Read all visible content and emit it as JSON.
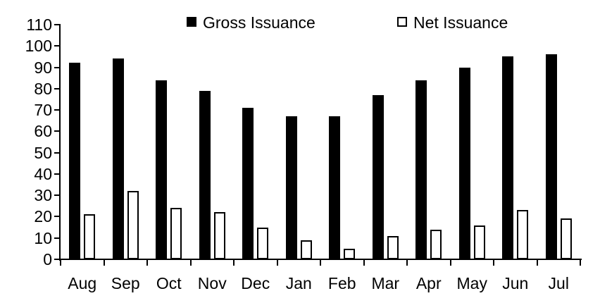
{
  "chart_data": {
    "type": "bar",
    "categories": [
      "Aug",
      "Sep",
      "Oct",
      "Nov",
      "Dec",
      "Jan",
      "Feb",
      "Mar",
      "Apr",
      "May",
      "Jun",
      "Jul"
    ],
    "series": [
      {
        "name": "Gross Issuance",
        "values": [
          92,
          94,
          84,
          79,
          71,
          67,
          67,
          77,
          84,
          90,
          95,
          96
        ],
        "fill": "#000000",
        "border": "#000000"
      },
      {
        "name": "Net Issuance",
        "values": [
          21,
          32,
          24,
          22,
          15,
          9,
          5,
          11,
          14,
          16,
          23,
          19
        ],
        "fill": "#ffffff",
        "border": "#000000"
      }
    ],
    "title": "",
    "xlabel": "",
    "ylabel": "",
    "ylim": [
      0,
      110
    ],
    "ytick_step": 10,
    "yticks": [
      0,
      10,
      20,
      30,
      40,
      50,
      60,
      70,
      80,
      90,
      100,
      110
    ],
    "grid": false,
    "legend_position": "top",
    "background": "#ffffff",
    "axis_color": "#000000"
  }
}
